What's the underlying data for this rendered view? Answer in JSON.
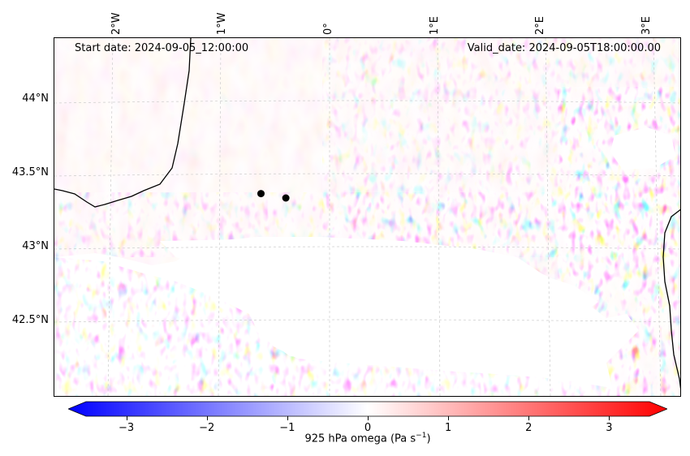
{
  "annotations": {
    "start_date": "Start date: 2024-09-05_12:00:00",
    "valid_date": "Valid_date: 2024-09-05T18:00:00.00"
  },
  "lon_labels": [
    "2°W",
    "1°W",
    "0°",
    "1°E",
    "2°E",
    "3°E"
  ],
  "lat_labels": [
    "44°N",
    "43.5°N",
    "43°N",
    "42.5°N"
  ],
  "colorbar": {
    "ticks": [
      "−3",
      "−2",
      "−1",
      "0",
      "1",
      "2",
      "3"
    ],
    "tick_values": [
      -3,
      -2,
      -1,
      0,
      1,
      2,
      3
    ],
    "range": [
      -3.5,
      3.5
    ],
    "label": "925 hPa omega (Pa s",
    "label_sup": "−1",
    "label_end": ")",
    "colormap": [
      "#0000ff",
      "#ffffff",
      "#ff0000"
    ],
    "extend": "both"
  },
  "markers": [
    {
      "lon": -0.63,
      "lat": 43.38
    },
    {
      "lon": -0.4,
      "lat": 43.35
    }
  ],
  "colors": {
    "blue": "#0000ff",
    "red": "#ff0000",
    "coast": "#000000",
    "grid": "#cccccc"
  }
}
